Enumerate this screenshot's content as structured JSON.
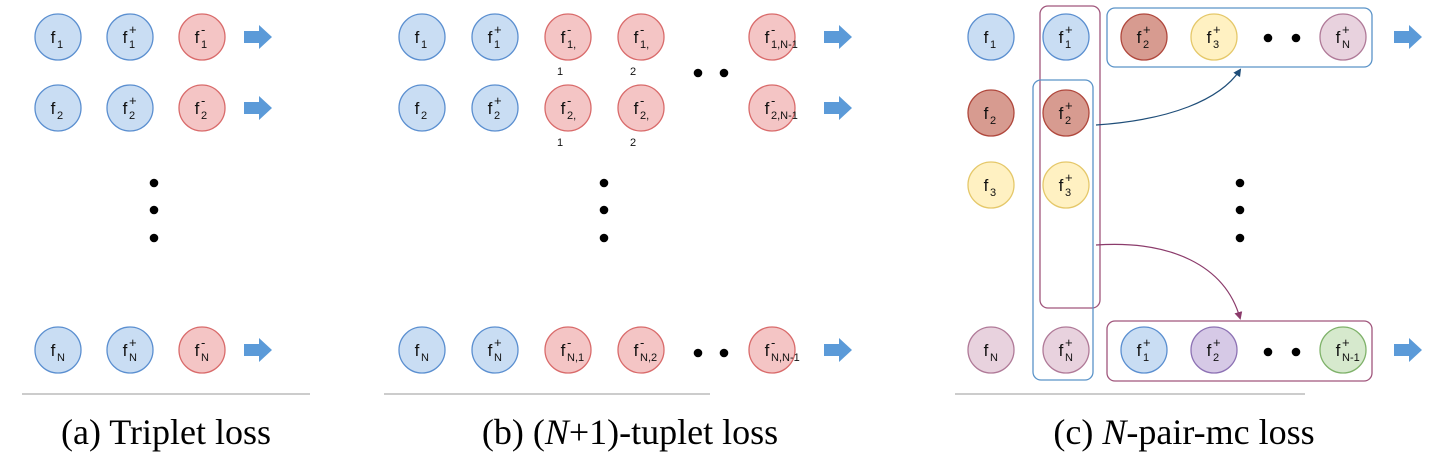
{
  "colors": {
    "blue": {
      "fill": "#c9ddf3",
      "stroke": "#5b8fd0"
    },
    "red": {
      "fill": "#f4c5c5",
      "stroke": "#d96b6b"
    },
    "darkred": {
      "fill": "#d79b90",
      "stroke": "#b0483d"
    },
    "yellow": {
      "fill": "#fff1c2",
      "stroke": "#e5c86a"
    },
    "pink": {
      "fill": "#e8d2de",
      "stroke": "#b07a98"
    },
    "purple": {
      "fill": "#d6c9e6",
      "stroke": "#8d72b4"
    },
    "green": {
      "fill": "#d6e9cd",
      "stroke": "#7fb26a"
    },
    "arrow": "#5b9ad8",
    "blue_box": "#5a93c8",
    "magenta_box": "#a0567c",
    "blue_connector": "#1f4e79",
    "magenta_connector": "#8b3b6b"
  },
  "panels": [
    {
      "id": "a",
      "caption": {
        "prefix": "(a)",
        "text": "Triplet loss"
      },
      "rows": [
        {
          "nodes": [
            {
              "base": "f",
              "sub": "1",
              "sup": "",
              "color": "blue"
            },
            {
              "base": "f",
              "sub": "1",
              "sup": "+",
              "color": "blue"
            },
            {
              "base": "f",
              "sub": "1",
              "sup": "-",
              "color": "red"
            }
          ]
        },
        {
          "nodes": [
            {
              "base": "f",
              "sub": "2",
              "sup": "",
              "color": "blue"
            },
            {
              "base": "f",
              "sub": "2",
              "sup": "+",
              "color": "blue"
            },
            {
              "base": "f",
              "sub": "2",
              "sup": "-",
              "color": "red"
            }
          ]
        },
        {
          "nodes": [
            {
              "base": "f",
              "sub": "N",
              "sup": "",
              "color": "blue"
            },
            {
              "base": "f",
              "sub": "N",
              "sup": "+",
              "color": "blue"
            },
            {
              "base": "f",
              "sub": "N",
              "sup": "-",
              "color": "red"
            }
          ]
        }
      ]
    },
    {
      "id": "b",
      "caption": {
        "prefix": "(b)",
        "italic": "N",
        "text": "+1)-tuplet loss"
      },
      "rows": [
        {
          "nodes": [
            {
              "base": "f",
              "sub": "1",
              "sup": "",
              "color": "blue"
            },
            {
              "base": "f",
              "sub": "1",
              "sup": "+",
              "color": "blue"
            },
            {
              "base": "f",
              "sub": "1,",
              "sup": "-",
              "color": "red",
              "below": "1"
            },
            {
              "base": "f",
              "sub": "1,",
              "sup": "-",
              "color": "red",
              "below": "2"
            },
            {
              "base": "f",
              "sub": "1,N-1",
              "sup": "-",
              "color": "red"
            }
          ]
        },
        {
          "nodes": [
            {
              "base": "f",
              "sub": "2",
              "sup": "",
              "color": "blue"
            },
            {
              "base": "f",
              "sub": "2",
              "sup": "+",
              "color": "blue"
            },
            {
              "base": "f",
              "sub": "2,",
              "sup": "-",
              "color": "red",
              "below": "1"
            },
            {
              "base": "f",
              "sub": "2,",
              "sup": "-",
              "color": "red",
              "below": "2"
            },
            {
              "base": "f",
              "sub": "2,N-1",
              "sup": "-",
              "color": "red"
            }
          ]
        },
        {
          "nodes": [
            {
              "base": "f",
              "sub": "N",
              "sup": "",
              "color": "blue"
            },
            {
              "base": "f",
              "sub": "N",
              "sup": "+",
              "color": "blue"
            },
            {
              "base": "f",
              "sub": "N,1",
              "sup": "-",
              "color": "red"
            },
            {
              "base": "f",
              "sub": "N,2",
              "sup": "-",
              "color": "red"
            },
            {
              "base": "f",
              "sub": "N,N-1",
              "sup": "-",
              "color": "red"
            }
          ]
        }
      ]
    },
    {
      "id": "c",
      "caption": {
        "prefix": "(c)",
        "italic": "N",
        "text": "-pair-mc loss"
      },
      "anchors": [
        {
          "base": "f",
          "sub": "1",
          "sup": "",
          "color": "blue"
        },
        {
          "base": "f",
          "sub": "2",
          "sup": "",
          "color": "darkred"
        },
        {
          "base": "f",
          "sub": "3",
          "sup": "",
          "color": "yellow"
        },
        {
          "base": "f",
          "sub": "N",
          "sup": "",
          "color": "pink"
        }
      ],
      "positives": [
        {
          "base": "f",
          "sub": "1",
          "sup": "+",
          "color": "blue"
        },
        {
          "base": "f",
          "sub": "2",
          "sup": "+",
          "color": "darkred"
        },
        {
          "base": "f",
          "sub": "3",
          "sup": "+",
          "color": "yellow"
        },
        {
          "base": "f",
          "sub": "N",
          "sup": "+",
          "color": "pink"
        }
      ],
      "top_group": [
        {
          "base": "f",
          "sub": "2",
          "sup": "+",
          "color": "darkred"
        },
        {
          "base": "f",
          "sub": "3",
          "sup": "+",
          "color": "yellow"
        },
        {
          "base": "f",
          "sub": "N",
          "sup": "+",
          "color": "pink"
        }
      ],
      "bottom_group": [
        {
          "base": "f",
          "sub": "1",
          "sup": "+",
          "color": "blue"
        },
        {
          "base": "f",
          "sub": "2",
          "sup": "+",
          "color": "purple"
        },
        {
          "base": "f",
          "sub": "N-1",
          "sup": "+",
          "color": "green"
        }
      ]
    }
  ]
}
